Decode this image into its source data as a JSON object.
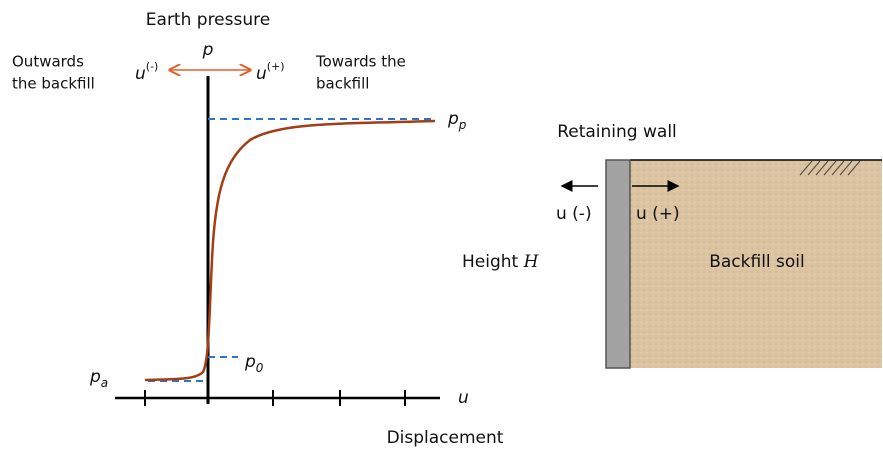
{
  "chart_left": {
    "title": "Earth pressure",
    "axis_y": "p",
    "axis_x": "u",
    "x_label": "Displacement",
    "left_direction": {
      "base": "u",
      "sup": "(-)"
    },
    "right_direction": {
      "base": "u",
      "sup": "(+)"
    },
    "left_note": [
      "Outwards",
      "the backfill"
    ],
    "right_note": [
      "Towards the",
      "backfill"
    ],
    "levels": [
      {
        "base": "p",
        "sub": "p"
      },
      {
        "base": "p",
        "sub": "0"
      },
      {
        "base": "p",
        "sub": "a"
      }
    ]
  },
  "wall": {
    "title": "Retaining wall",
    "left_move": "u (-)",
    "right_move": "u (+)",
    "height": {
      "text": "Height",
      "symbol": "H"
    },
    "soil": "Backfill soil"
  }
}
